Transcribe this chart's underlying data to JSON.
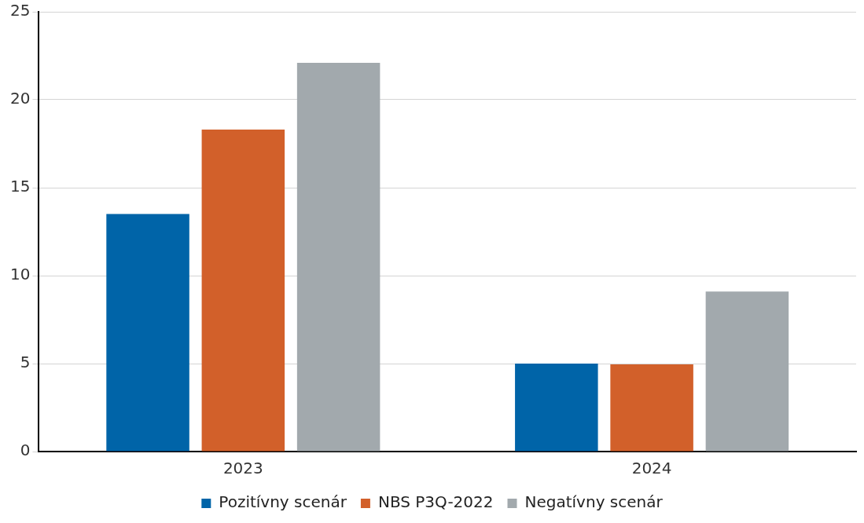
{
  "chart_data": {
    "type": "bar",
    "categories": [
      "2023",
      "2024"
    ],
    "series": [
      {
        "name": "Pozitívny scenár",
        "color": "#0064a8",
        "values": [
          13.5,
          5.0
        ]
      },
      {
        "name": "NBS P3Q-2022",
        "color": "#d2602a",
        "values": [
          18.3,
          4.95
        ]
      },
      {
        "name": "Negatívny scenár",
        "color": "#a2a9ad",
        "values": [
          22.1,
          9.1
        ]
      }
    ],
    "ylim": [
      0,
      25
    ],
    "yticks": [
      0,
      5,
      10,
      15,
      20,
      25
    ],
    "grid": "y",
    "legend": "bottom"
  }
}
